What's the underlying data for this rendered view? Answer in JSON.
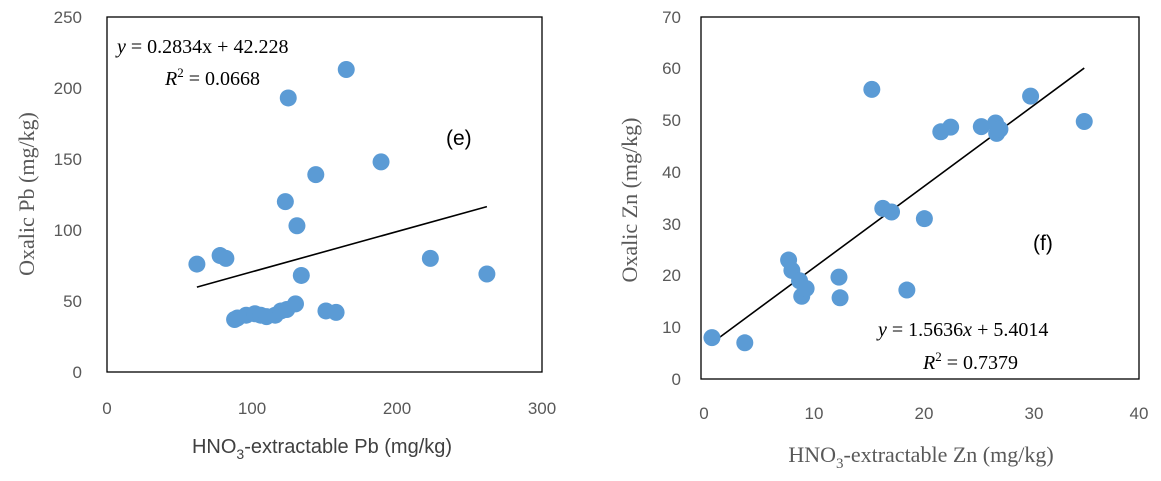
{
  "colors": {
    "point": "#5B9BD5",
    "trendline": "#000000",
    "frame": "#000000",
    "text": "#595959"
  },
  "chart_data": [
    {
      "type": "scatter",
      "panel_label": "(e)",
      "xlabel_parts": [
        "HNO",
        "3",
        "-extractable Pb (mg/kg)"
      ],
      "ylabel": "Oxalic Pb (mg/kg)",
      "xlim": [
        0,
        300
      ],
      "ylim": [
        0,
        250
      ],
      "xticks": [
        "0",
        "100",
        "200",
        "300"
      ],
      "yticks": [
        "0",
        "50",
        "100",
        "150",
        "200",
        "250"
      ],
      "points": [
        [
          62,
          76
        ],
        [
          78,
          82
        ],
        [
          82,
          80
        ],
        [
          88,
          37
        ],
        [
          90,
          38
        ],
        [
          96,
          40
        ],
        [
          102,
          41
        ],
        [
          106,
          40
        ],
        [
          110,
          39
        ],
        [
          116,
          40
        ],
        [
          120,
          43
        ],
        [
          124,
          44
        ],
        [
          123,
          120
        ],
        [
          125,
          193
        ],
        [
          130,
          48
        ],
        [
          131,
          103
        ],
        [
          134,
          68
        ],
        [
          144,
          139
        ],
        [
          151,
          43
        ],
        [
          158,
          42
        ],
        [
          165,
          213
        ],
        [
          189,
          148
        ],
        [
          223,
          80
        ],
        [
          262,
          69
        ]
      ],
      "trendline": {
        "slope": 0.2834,
        "intercept": 42.228,
        "x_range": [
          62,
          262
        ]
      },
      "equation": {
        "y": "y",
        "rhs": " = 0.2834x + 42.228"
      },
      "r_squared": {
        "r": "R",
        "sup": "2",
        "rhs": " = 0.0668"
      }
    },
    {
      "type": "scatter",
      "panel_label": "(f)",
      "xlabel_parts": [
        "HNO",
        "3",
        "-extractable Zn (mg/kg)"
      ],
      "ylabel": "Oxalic Zn (mg/kg)",
      "xlim": [
        0,
        40
      ],
      "ylim": [
        0,
        70
      ],
      "xticks": [
        "0",
        "10",
        "20",
        "30",
        "40"
      ],
      "yticks": [
        "0",
        "10",
        "20",
        "30",
        "40",
        "50",
        "60",
        "70"
      ],
      "points": [
        [
          1,
          8
        ],
        [
          4,
          7
        ],
        [
          8,
          23
        ],
        [
          8.3,
          21
        ],
        [
          9,
          19
        ],
        [
          9.2,
          16
        ],
        [
          9.6,
          17.5
        ],
        [
          12.6,
          19.7
        ],
        [
          12.7,
          15.7
        ],
        [
          15.6,
          56
        ],
        [
          16.6,
          33
        ],
        [
          17.4,
          32.3
        ],
        [
          18.8,
          17.2
        ],
        [
          20.4,
          31
        ],
        [
          21.9,
          47.8
        ],
        [
          22.8,
          48.7
        ],
        [
          25.6,
          48.8
        ],
        [
          26.9,
          49.5
        ],
        [
          27.0,
          47.5
        ],
        [
          27.3,
          48.3
        ],
        [
          30.1,
          54.7
        ],
        [
          35.0,
          49.8
        ]
      ],
      "trendline": {
        "slope": 1.5636,
        "intercept": 5.4014,
        "x_range": [
          1,
          35
        ]
      },
      "equation": {
        "y": "y",
        "rhs": " = 1.5636",
        "x": "x",
        "rhs2": " + 5.4014"
      },
      "r_squared": {
        "r": "R",
        "sup": "2",
        "rhs": " = 0.7379"
      }
    }
  ]
}
